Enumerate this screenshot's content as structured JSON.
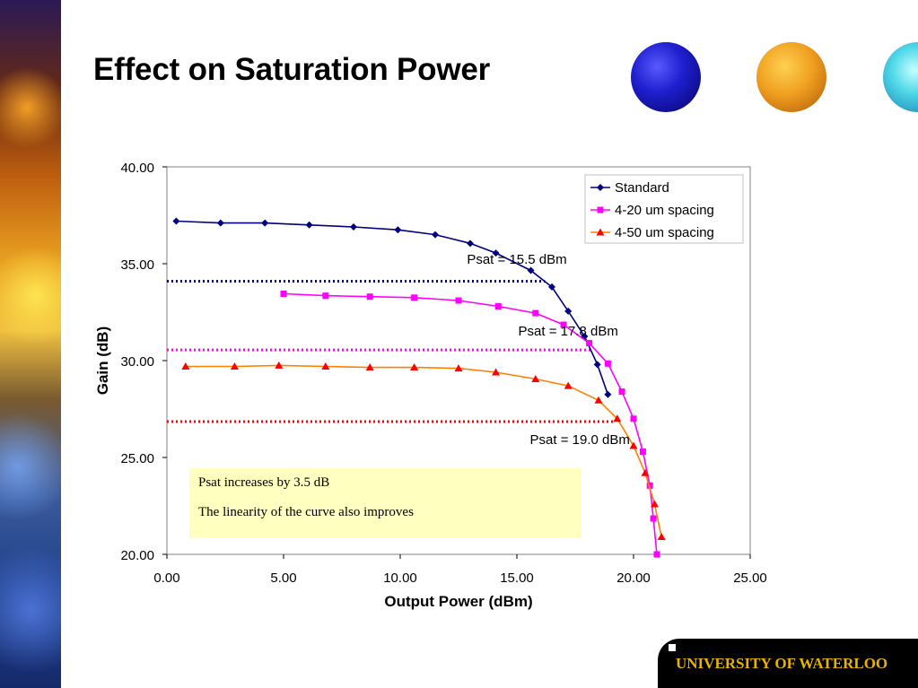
{
  "slide": {
    "title": "Effect on Saturation Power",
    "footer": "UNIVERSITY OF WATERLOO",
    "note_lines": [
      "Psat increases by 3.5 dB",
      "The linearity of the curve also improves"
    ]
  },
  "chart_data": {
    "type": "line",
    "title": "",
    "xlabel": "Output Power (dBm)",
    "ylabel": "Gain (dB)",
    "xlim": [
      0,
      25
    ],
    "ylim": [
      20,
      40
    ],
    "xticks": [
      0,
      5,
      10,
      15,
      20,
      25
    ],
    "yticks": [
      20,
      25,
      30,
      35,
      40
    ],
    "xtick_labels": [
      "0.00",
      "5.00",
      "10.00",
      "15.00",
      "20.00",
      "25.00"
    ],
    "ytick_labels": [
      "20.00",
      "25.00",
      "30.00",
      "35.00",
      "40.00"
    ],
    "grid": false,
    "legend_position": "top-right",
    "series": [
      {
        "name": "Standard",
        "color": "#000080",
        "marker": "diamond",
        "points": [
          [
            0.4,
            37.2
          ],
          [
            2.3,
            37.1
          ],
          [
            4.2,
            37.1
          ],
          [
            6.1,
            37.0
          ],
          [
            8.0,
            36.9
          ],
          [
            9.9,
            36.75
          ],
          [
            11.5,
            36.5
          ],
          [
            13.0,
            36.05
          ],
          [
            14.1,
            35.55
          ],
          [
            15.6,
            34.65
          ],
          [
            16.5,
            33.8
          ],
          [
            17.2,
            32.55
          ],
          [
            17.9,
            31.25
          ],
          [
            18.45,
            29.8
          ],
          [
            18.9,
            28.25
          ]
        ]
      },
      {
        "name": "4-20 um spacing",
        "color": "#ff00ff",
        "marker": "square",
        "points": [
          [
            5.0,
            33.45
          ],
          [
            6.8,
            33.35
          ],
          [
            8.7,
            33.3
          ],
          [
            10.6,
            33.25
          ],
          [
            12.5,
            33.1
          ],
          [
            14.2,
            32.8
          ],
          [
            15.8,
            32.45
          ],
          [
            17.0,
            31.85
          ],
          [
            18.1,
            30.9
          ],
          [
            18.9,
            29.85
          ],
          [
            19.5,
            28.4
          ],
          [
            20.0,
            27.0
          ],
          [
            20.4,
            25.3
          ],
          [
            20.7,
            23.55
          ],
          [
            20.85,
            21.85
          ],
          [
            21.0,
            20.0
          ]
        ]
      },
      {
        "name": "4-50 um spacing",
        "color": "#ff8000",
        "marker": "triangle",
        "points": [
          [
            0.8,
            29.7
          ],
          [
            2.9,
            29.7
          ],
          [
            4.8,
            29.75
          ],
          [
            6.8,
            29.7
          ],
          [
            8.7,
            29.65
          ],
          [
            10.6,
            29.65
          ],
          [
            12.5,
            29.6
          ],
          [
            14.1,
            29.4
          ],
          [
            15.8,
            29.05
          ],
          [
            17.2,
            28.7
          ],
          [
            18.5,
            27.95
          ],
          [
            19.3,
            27.0
          ],
          [
            20.0,
            25.6
          ],
          [
            20.5,
            24.2
          ],
          [
            20.9,
            22.6
          ],
          [
            21.2,
            20.9
          ]
        ]
      }
    ],
    "reference_lines": [
      {
        "y": 34.1,
        "x_from": 0,
        "x_to": 16.2,
        "color": "#000080"
      },
      {
        "y": 30.55,
        "x_from": 0,
        "x_to": 18.2,
        "color": "#ff00ff"
      },
      {
        "y": 26.85,
        "x_from": 0,
        "x_to": 19.2,
        "color": "#ff0000"
      }
    ],
    "annotations": [
      {
        "text": "Psat =  15.5 dBm",
        "x": 15,
        "y": 35.0
      },
      {
        "text": "Psat =  17.8 dBm",
        "x": 17.2,
        "y": 31.3
      },
      {
        "text": "Psat =  19.0 dBm",
        "x": 17.7,
        "y": 25.7
      }
    ]
  }
}
